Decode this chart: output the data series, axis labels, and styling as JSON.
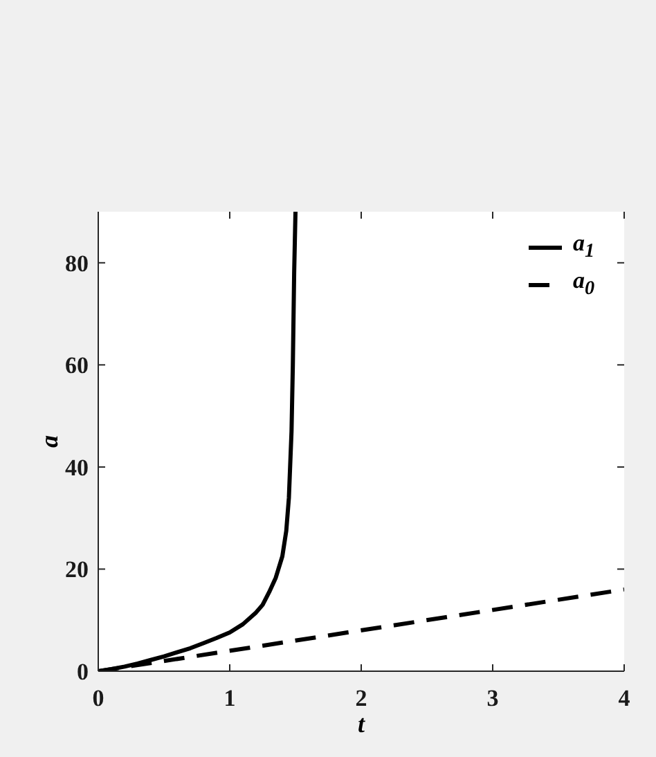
{
  "chart_data": {
    "type": "line",
    "xlabel": "t",
    "ylabel": "a",
    "xlim": [
      0,
      4
    ],
    "xticks": [
      0,
      1,
      2,
      3,
      4
    ],
    "ylim": [
      0,
      90
    ],
    "yticks": [
      0,
      20,
      40,
      60,
      80
    ],
    "legend": "top right",
    "series": [
      {
        "name": "a$_{1}$",
        "color": "#000000",
        "line_style": "solid",
        "x": [
          0,
          0.1,
          0.2,
          0.3,
          0.4,
          0.5,
          0.6,
          0.7,
          0.8,
          0.9,
          1.0,
          1.1,
          1.2,
          1.25,
          1.3,
          1.35,
          1.4,
          1.43,
          1.45,
          1.47,
          1.48,
          1.49,
          1.5
        ],
        "values": [
          0,
          0.4,
          0.9,
          1.5,
          2.2,
          2.9,
          3.7,
          4.5,
          5.5,
          6.5,
          7.6,
          9.2,
          11.5,
          13,
          15.5,
          18.3,
          22.5,
          27.5,
          34,
          47,
          60,
          78,
          90
        ]
      },
      {
        "name": "a$_{0}$",
        "color": "#000000",
        "line_style": "dashed",
        "x": [
          0,
          4
        ],
        "values": [
          0,
          16
        ]
      }
    ]
  }
}
